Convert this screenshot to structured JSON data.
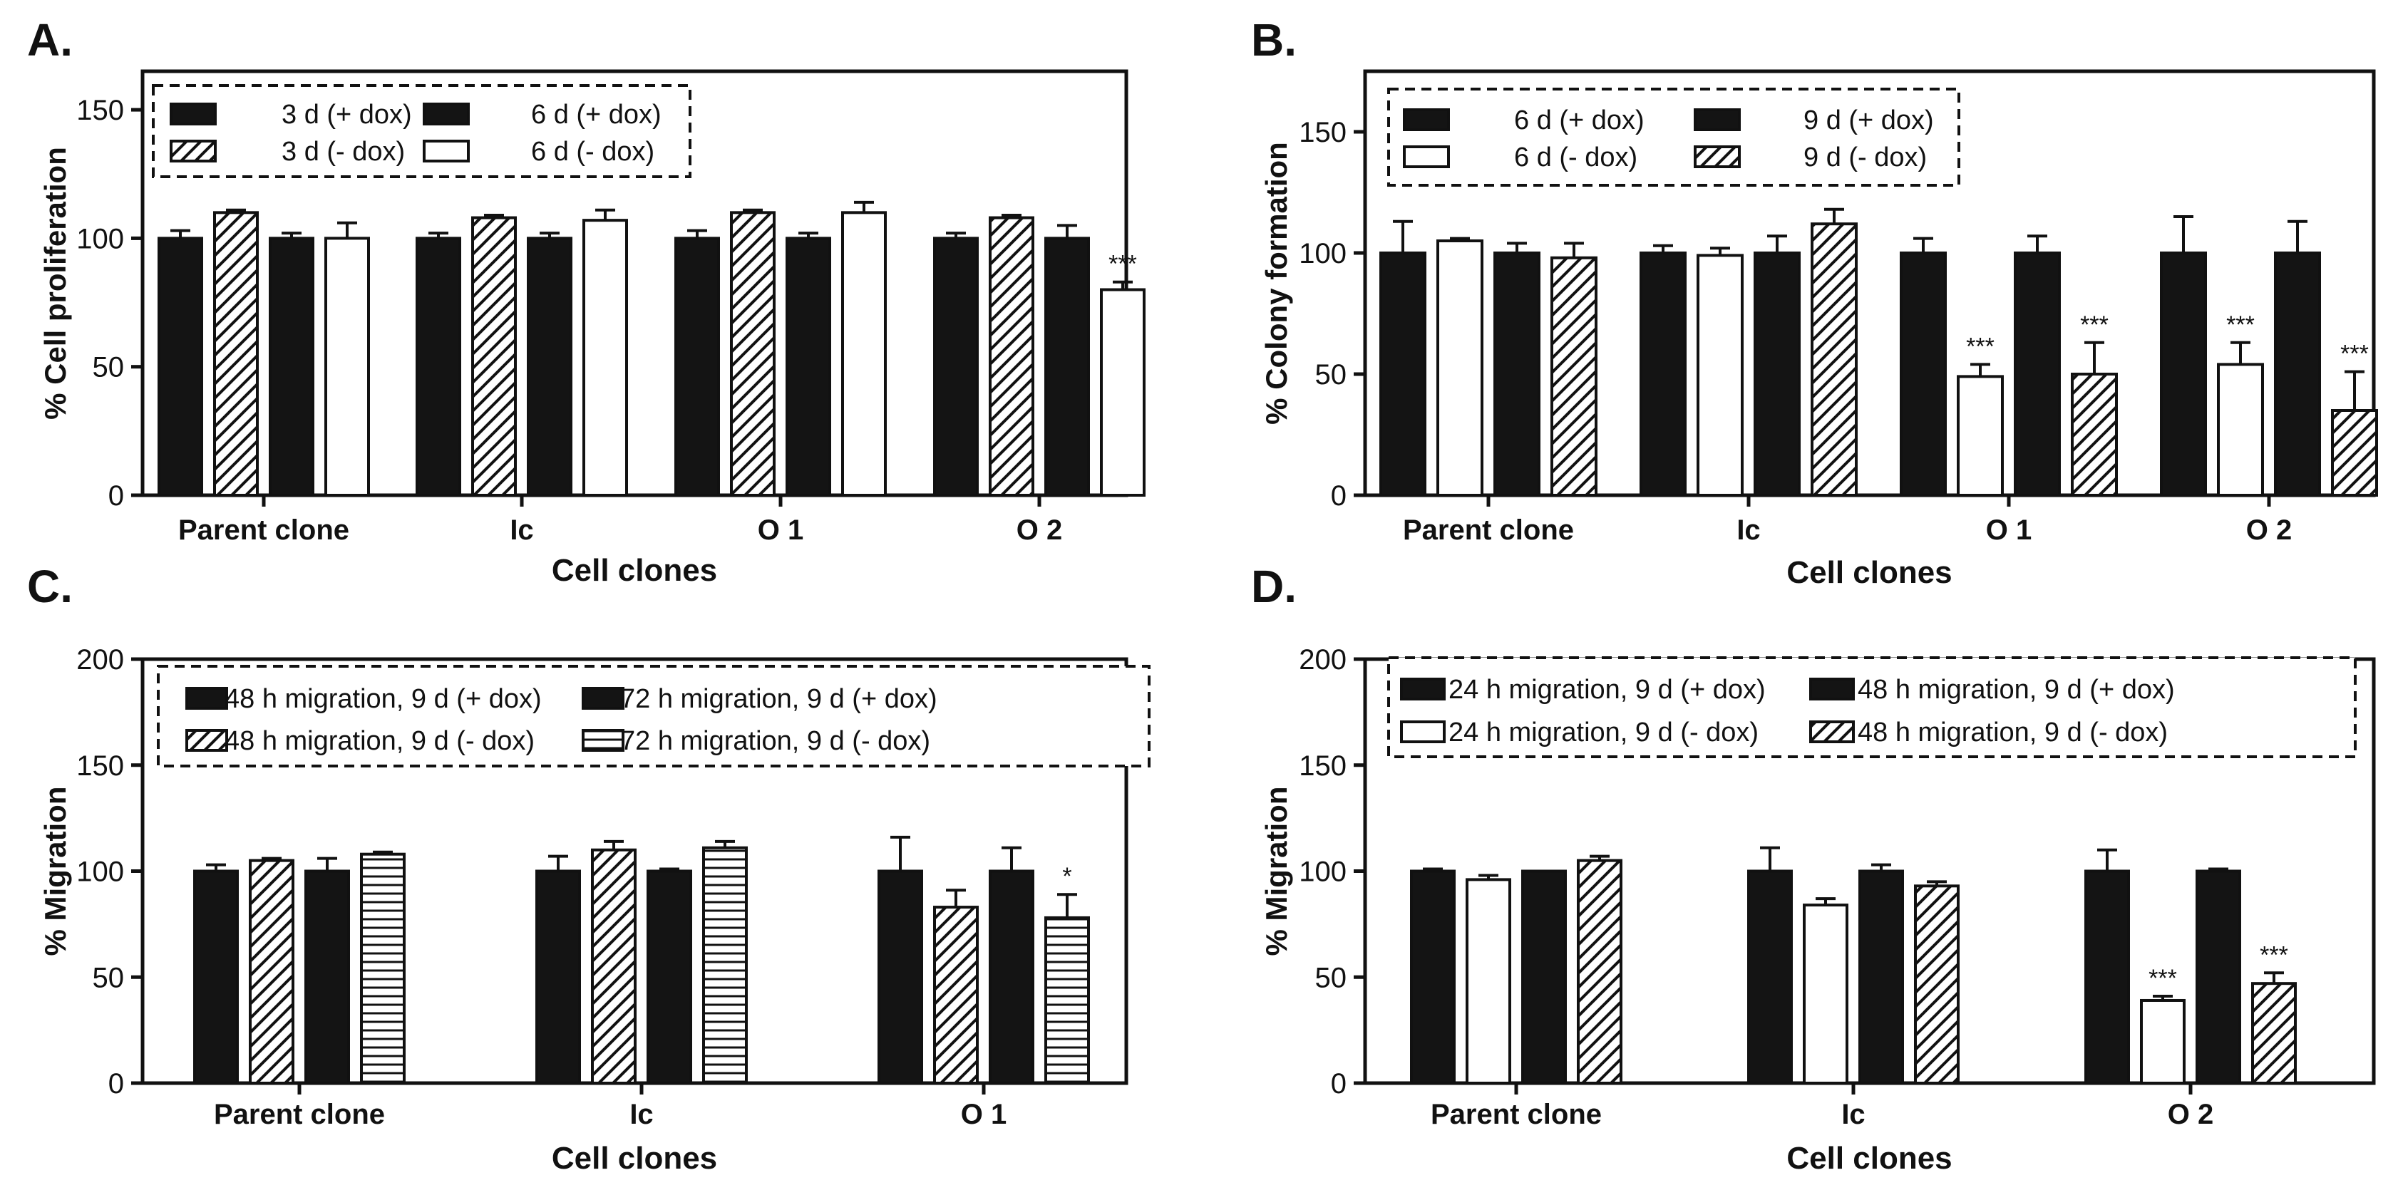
{
  "figure": {
    "panels": [
      {
        "letter": "A."
      },
      {
        "letter": "B."
      },
      {
        "letter": "C."
      },
      {
        "letter": "D."
      }
    ]
  },
  "chart_data": [
    {
      "type": "bar",
      "panel": "A.",
      "title": "",
      "xlabel": "Cell clones",
      "ylabel": "% Cell proliferation",
      "ylim": [
        0,
        165
      ],
      "yticks": [
        0,
        50,
        100,
        150
      ],
      "categories": [
        "Parent clone",
        "Ic",
        "O 1",
        "O 2"
      ],
      "series": [
        {
          "name": "3 d (+ dox)",
          "pattern": "solid",
          "values": [
            100,
            100,
            100,
            100
          ],
          "errors": [
            3,
            2,
            3,
            2
          ]
        },
        {
          "name": "3 d (- dox)",
          "pattern": "diagonal",
          "values": [
            110,
            108,
            110,
            108
          ],
          "errors": [
            1,
            1,
            1,
            1
          ]
        },
        {
          "name": "6 d (+ dox)",
          "pattern": "solid",
          "values": [
            100,
            100,
            100,
            100
          ],
          "errors": [
            2,
            2,
            2,
            5
          ]
        },
        {
          "name": "6 d (- dox)",
          "pattern": "open",
          "values": [
            100,
            107,
            110,
            80
          ],
          "errors": [
            6,
            4,
            4,
            3
          ]
        }
      ],
      "annotations": [
        {
          "category": "O 2",
          "series": "6 d (- dox)",
          "text": "***"
        }
      ],
      "legend": {
        "position": "top-left",
        "columns": 2
      }
    },
    {
      "type": "bar",
      "panel": "B.",
      "title": "",
      "xlabel": "Cell clones",
      "ylabel": "% Colony formation",
      "ylim": [
        0,
        175
      ],
      "yticks": [
        0,
        50,
        100,
        150
      ],
      "categories": [
        "Parent clone",
        "Ic",
        "O 1",
        "O 2"
      ],
      "series": [
        {
          "name": "6 d (+ dox)",
          "pattern": "solid",
          "values": [
            100,
            100,
            100,
            100
          ],
          "errors": [
            13,
            3,
            6,
            15
          ]
        },
        {
          "name": "6 d (- dox)",
          "pattern": "open",
          "values": [
            105,
            99,
            49,
            54
          ],
          "errors": [
            1,
            3,
            5,
            9
          ]
        },
        {
          "name": "9 d (+ dox)",
          "pattern": "solid",
          "values": [
            100,
            100,
            100,
            100
          ],
          "errors": [
            4,
            7,
            7,
            13
          ]
        },
        {
          "name": "9 d (- dox)",
          "pattern": "diagonal",
          "values": [
            98,
            112,
            50,
            35
          ],
          "errors": [
            6,
            6,
            13,
            16
          ]
        }
      ],
      "annotations": [
        {
          "category": "O 1",
          "series": "6 d (- dox)",
          "text": "***"
        },
        {
          "category": "O 1",
          "series": "9 d (- dox)",
          "text": "***"
        },
        {
          "category": "O 2",
          "series": "6 d (- dox)",
          "text": "***"
        },
        {
          "category": "O 2",
          "series": "9 d (- dox)",
          "text": "***"
        }
      ],
      "legend": {
        "position": "top-left",
        "columns": 2
      }
    },
    {
      "type": "bar",
      "panel": "C.",
      "title": "",
      "xlabel": "Cell clones",
      "ylabel": "% Migration",
      "ylim": [
        0,
        200
      ],
      "yticks": [
        0,
        50,
        100,
        150,
        200
      ],
      "categories": [
        "Parent clone",
        "Ic",
        "O 1"
      ],
      "series": [
        {
          "name": "48 h migration, 9 d (+ dox)",
          "pattern": "solid",
          "values": [
            100,
            100,
            100
          ],
          "errors": [
            3,
            7,
            16
          ]
        },
        {
          "name": "48 h migration, 9 d (- dox)",
          "pattern": "diagonal",
          "values": [
            105,
            110,
            83
          ],
          "errors": [
            1,
            4,
            8
          ]
        },
        {
          "name": "72 h migration, 9 d (+ dox)",
          "pattern": "solid",
          "values": [
            100,
            100,
            100
          ],
          "errors": [
            6,
            1,
            11
          ]
        },
        {
          "name": "72 h migration, 9 d (- dox)",
          "pattern": "horizontal",
          "values": [
            108,
            111,
            78
          ],
          "errors": [
            1,
            3,
            11
          ]
        }
      ],
      "annotations": [
        {
          "category": "O 1",
          "series": "72 h migration, 9 d (- dox)",
          "text": "*"
        }
      ],
      "legend": {
        "position": "top",
        "columns": 2
      }
    },
    {
      "type": "bar",
      "panel": "D.",
      "title": "",
      "xlabel": "Cell clones",
      "ylabel": "% Migration",
      "ylim": [
        0,
        200
      ],
      "yticks": [
        0,
        50,
        100,
        150,
        200
      ],
      "categories": [
        "Parent clone",
        "Ic",
        "O 2"
      ],
      "series": [
        {
          "name": "24 h migration, 9 d (+ dox)",
          "pattern": "solid",
          "values": [
            100,
            100,
            100
          ],
          "errors": [
            1,
            11,
            10
          ]
        },
        {
          "name": "24 h migration, 9 d (- dox)",
          "pattern": "open",
          "values": [
            96,
            84,
            39
          ],
          "errors": [
            2,
            3,
            2
          ]
        },
        {
          "name": "48 h migration, 9 d (+ dox)",
          "pattern": "solid",
          "values": [
            100,
            100,
            100
          ],
          "errors": [
            0,
            3,
            1
          ]
        },
        {
          "name": "48 h migration, 9 d (- dox)",
          "pattern": "diagonal",
          "values": [
            105,
            93,
            47
          ],
          "errors": [
            2,
            2,
            5
          ]
        }
      ],
      "annotations": [
        {
          "category": "O 2",
          "series": "24 h migration, 9 d (- dox)",
          "text": "***"
        },
        {
          "category": "O 2",
          "series": "48 h migration, 9 d (- dox)",
          "text": "***"
        }
      ],
      "legend": {
        "position": "top",
        "columns": 2
      }
    }
  ]
}
